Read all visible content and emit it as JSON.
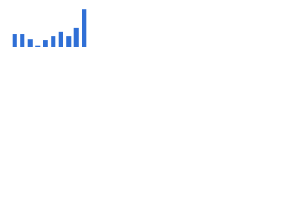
{
  "chart_data": {
    "type": "bar",
    "categories": [
      null,
      null,
      null,
      null,
      null,
      null,
      null,
      null,
      null,
      null
    ],
    "values": [
      3.4,
      3.4,
      2,
      0.3,
      1.8,
      2.7,
      3.9,
      2.7,
      4.8,
      9.5
    ],
    "color": "#2f6fd6",
    "ylim": [
      0,
      10
    ]
  }
}
